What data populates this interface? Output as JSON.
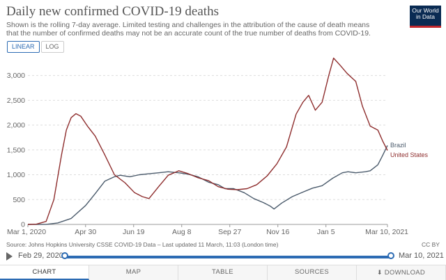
{
  "header": {
    "title": "Daily new confirmed COVID-19 deaths",
    "subtitle": "Shown is the rolling 7-day average. Limited testing and challenges in the attribution of the cause of death means that the number of confirmed deaths may not be an accurate count of the true number of deaths from COVID-19.",
    "logo_line1": "Our World",
    "logo_line2": "in Data"
  },
  "toggles": {
    "linear": "LINEAR",
    "log": "LOG"
  },
  "source": "Source: Johns Hopkins University CSSE COVID-19 Data – Last updated 11 March, 11:03 (London time)",
  "license": "CC BY",
  "timeline": {
    "start": "Feb 29, 2020",
    "end": "Mar 10, 2021"
  },
  "tabs": {
    "chart": "CHART",
    "map": "MAP",
    "table": "TABLE",
    "sources": "SOURCES",
    "download": "DOWNLOAD"
  },
  "colors": {
    "brazil": "#4a5a6b",
    "united_states": "#8e2d2d",
    "accent": "#2c6bb3"
  },
  "chart_data": {
    "type": "line",
    "title": "Daily new confirmed COVID-19 deaths",
    "xlabel": "",
    "ylabel": "",
    "ylim": [
      0,
      3400
    ],
    "xlim": [
      "2020-03-01",
      "2021-03-10"
    ],
    "y_ticks": [
      0,
      500,
      1000,
      1500,
      2000,
      2500,
      3000
    ],
    "y_tick_labels": [
      "0",
      "500",
      "1,000",
      "1,500",
      "2,000",
      "2,500",
      "3,000"
    ],
    "x_ticks": [
      "2020-03-01",
      "2020-04-30",
      "2020-06-19",
      "2020-08-08",
      "2020-09-27",
      "2020-11-16",
      "2021-01-05",
      "2021-03-10"
    ],
    "x_tick_labels": [
      "Mar 1, 2020",
      "Apr 30",
      "Jun 19",
      "Aug 8",
      "Sep 27",
      "Nov 16",
      "Jan 5",
      "Mar 10, 2021"
    ],
    "grid": "horizontal",
    "series": [
      {
        "name": "Brazil",
        "color": "#4a5a6b",
        "points": [
          [
            "2020-03-01",
            0
          ],
          [
            "2020-03-20",
            2
          ],
          [
            "2020-04-01",
            30
          ],
          [
            "2020-04-15",
            120
          ],
          [
            "2020-04-30",
            380
          ],
          [
            "2020-05-10",
            620
          ],
          [
            "2020-05-20",
            870
          ],
          [
            "2020-05-30",
            960
          ],
          [
            "2020-06-05",
            990
          ],
          [
            "2020-06-15",
            960
          ],
          [
            "2020-06-25",
            1000
          ],
          [
            "2020-07-05",
            1020
          ],
          [
            "2020-07-15",
            1040
          ],
          [
            "2020-07-25",
            1060
          ],
          [
            "2020-08-05",
            1040
          ],
          [
            "2020-08-15",
            1010
          ],
          [
            "2020-08-25",
            960
          ],
          [
            "2020-09-05",
            850
          ],
          [
            "2020-09-15",
            800
          ],
          [
            "2020-09-22",
            720
          ],
          [
            "2020-10-01",
            720
          ],
          [
            "2020-10-12",
            640
          ],
          [
            "2020-10-22",
            520
          ],
          [
            "2020-11-01",
            440
          ],
          [
            "2020-11-08",
            370
          ],
          [
            "2020-11-12",
            310
          ],
          [
            "2020-11-20",
            430
          ],
          [
            "2020-12-01",
            560
          ],
          [
            "2020-12-12",
            650
          ],
          [
            "2020-12-22",
            730
          ],
          [
            "2021-01-01",
            780
          ],
          [
            "2021-01-12",
            930
          ],
          [
            "2021-01-22",
            1040
          ],
          [
            "2021-01-28",
            1060
          ],
          [
            "2021-02-05",
            1040
          ],
          [
            "2021-02-15",
            1060
          ],
          [
            "2021-02-20",
            1080
          ],
          [
            "2021-02-28",
            1200
          ],
          [
            "2021-03-05",
            1390
          ],
          [
            "2021-03-10",
            1590
          ]
        ]
      },
      {
        "name": "United States",
        "color": "#8e2d2d",
        "points": [
          [
            "2020-03-01",
            0
          ],
          [
            "2020-03-10",
            5
          ],
          [
            "2020-03-20",
            60
          ],
          [
            "2020-03-28",
            500
          ],
          [
            "2020-04-05",
            1400
          ],
          [
            "2020-04-10",
            1900
          ],
          [
            "2020-04-15",
            2150
          ],
          [
            "2020-04-20",
            2230
          ],
          [
            "2020-04-25",
            2180
          ],
          [
            "2020-05-02",
            1980
          ],
          [
            "2020-05-10",
            1780
          ],
          [
            "2020-05-20",
            1400
          ],
          [
            "2020-05-30",
            1000
          ],
          [
            "2020-06-10",
            840
          ],
          [
            "2020-06-20",
            640
          ],
          [
            "2020-06-28",
            560
          ],
          [
            "2020-07-05",
            520
          ],
          [
            "2020-07-15",
            760
          ],
          [
            "2020-07-25",
            990
          ],
          [
            "2020-08-05",
            1080
          ],
          [
            "2020-08-15",
            1020
          ],
          [
            "2020-08-25",
            940
          ],
          [
            "2020-09-05",
            880
          ],
          [
            "2020-09-15",
            760
          ],
          [
            "2020-09-25",
            710
          ],
          [
            "2020-10-05",
            700
          ],
          [
            "2020-10-15",
            720
          ],
          [
            "2020-10-25",
            800
          ],
          [
            "2020-11-05",
            980
          ],
          [
            "2020-11-15",
            1220
          ],
          [
            "2020-11-25",
            1560
          ],
          [
            "2020-12-05",
            2220
          ],
          [
            "2020-12-12",
            2460
          ],
          [
            "2020-12-18",
            2600
          ],
          [
            "2020-12-25",
            2300
          ],
          [
            "2021-01-01",
            2460
          ],
          [
            "2021-01-08",
            3000
          ],
          [
            "2021-01-13",
            3350
          ],
          [
            "2021-01-20",
            3200
          ],
          [
            "2021-01-27",
            3040
          ],
          [
            "2021-02-05",
            2880
          ],
          [
            "2021-02-12",
            2380
          ],
          [
            "2021-02-20",
            1980
          ],
          [
            "2021-02-28",
            1900
          ],
          [
            "2021-03-05",
            1680
          ],
          [
            "2021-03-10",
            1490
          ]
        ]
      }
    ]
  }
}
